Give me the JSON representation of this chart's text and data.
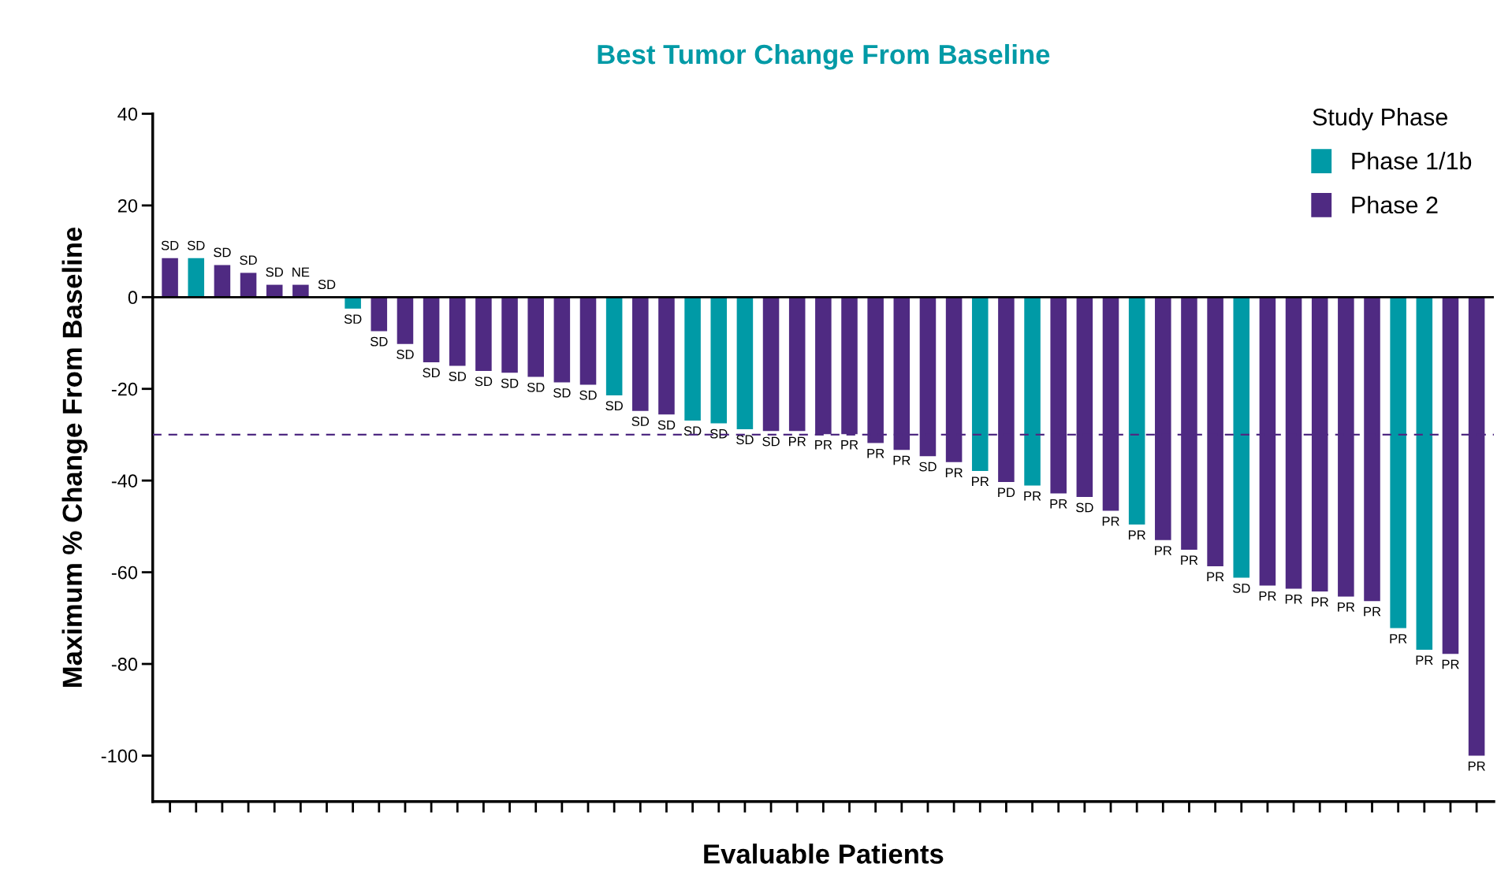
{
  "chart_data": {
    "type": "bar",
    "title": "Best Tumor Change From Baseline",
    "xlabel": "Evaluable Patients",
    "ylabel": "Maximum % Change From Baseline",
    "legend_title": "Study Phase",
    "categories": [
      null,
      null,
      null,
      null,
      null,
      null,
      null,
      null,
      null,
      null,
      null,
      null,
      null,
      null,
      null,
      null,
      null,
      null,
      null,
      null,
      null,
      null,
      null,
      null,
      null,
      null,
      null,
      null,
      null,
      null,
      null,
      null,
      null,
      null,
      null,
      null,
      null,
      null,
      null,
      null,
      null,
      null,
      null,
      null,
      null,
      null,
      null,
      null,
      null,
      null,
      null
    ],
    "series": [
      {
        "name": "Phase 1/1b",
        "color": "#009aa6",
        "values": [
          null,
          8.5,
          null,
          null,
          null,
          null,
          null,
          -2.5,
          null,
          null,
          null,
          null,
          null,
          null,
          null,
          null,
          null,
          -21.4,
          null,
          null,
          -26.9,
          -27.5,
          -28.8,
          null,
          null,
          null,
          null,
          null,
          null,
          null,
          null,
          -37.9,
          null,
          -41.1,
          null,
          null,
          null,
          -49.6,
          null,
          null,
          null,
          -61.2,
          null,
          null,
          null,
          null,
          null,
          -72.2,
          -76.9,
          null,
          null
        ],
        "value_labels": [
          null,
          "SD",
          null,
          null,
          null,
          null,
          null,
          "SD",
          null,
          null,
          null,
          null,
          null,
          null,
          null,
          null,
          null,
          "SD",
          null,
          null,
          "SD",
          "SD",
          "SD",
          null,
          null,
          null,
          null,
          null,
          null,
          null,
          null,
          "PR",
          null,
          "PR",
          null,
          null,
          null,
          "PR",
          null,
          null,
          null,
          "SD",
          null,
          null,
          null,
          null,
          null,
          "PR",
          "PR",
          null,
          null
        ]
      },
      {
        "name": "Phase 2",
        "color": "#4f2a82",
        "values": [
          8.5,
          null,
          7,
          5.3,
          2.7,
          2.7,
          0,
          null,
          -7.4,
          -10.2,
          -14.2,
          -15,
          -16.1,
          -16.5,
          -17.4,
          -18.6,
          -19.1,
          null,
          -24.8,
          -25.6,
          null,
          null,
          null,
          -29.2,
          -29.2,
          -29.9,
          -29.9,
          -31.8,
          -33.3,
          -34.7,
          -36,
          null,
          -40.3,
          null,
          -42.8,
          -43.6,
          -46.6,
          null,
          -53,
          -55.1,
          -58.7,
          null,
          -62.9,
          -63.6,
          -64.2,
          -65.3,
          -66.3,
          null,
          null,
          -77.8,
          -100
        ],
        "value_labels": [
          "SD",
          null,
          "SD",
          "SD",
          "SD",
          "NE",
          "SD",
          null,
          "SD",
          "SD",
          "SD",
          "SD",
          "SD",
          "SD",
          "SD",
          "SD",
          "SD",
          null,
          "SD",
          "SD",
          null,
          null,
          null,
          "SD",
          "PR",
          "PR",
          "PR",
          "PR",
          "PR",
          "SD",
          "PR",
          null,
          "PD",
          null,
          "PR",
          "SD",
          "PR",
          null,
          "PR",
          "PR",
          "PR",
          null,
          "PR",
          "PR",
          "PR",
          "PR",
          "PR",
          null,
          null,
          "PR",
          "PR"
        ]
      }
    ],
    "ylim": [
      -110,
      40
    ],
    "yticks": [
      -100,
      -80,
      -60,
      -40,
      -20,
      0,
      20,
      40
    ],
    "ref_lines": [
      {
        "axis": "y",
        "value": 0,
        "color": "#000000",
        "line_style": "solid"
      },
      {
        "axis": "y",
        "value": -30,
        "color": "#4f2a82",
        "line_style": "dashed"
      }
    ],
    "legend": "top right",
    "grid": false
  }
}
